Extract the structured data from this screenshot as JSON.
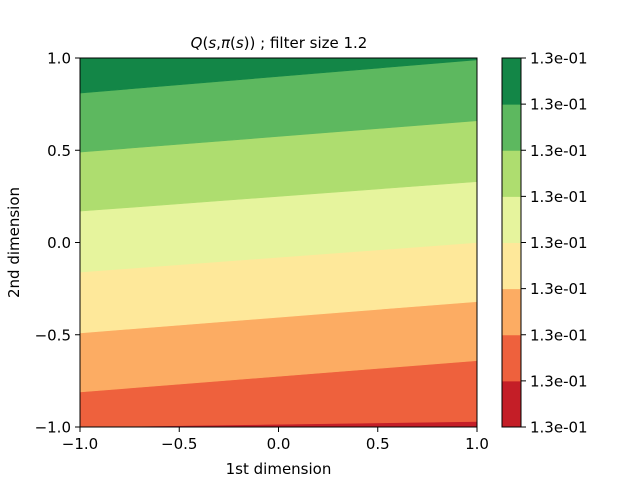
{
  "chart_data": {
    "type": "heatmap",
    "title": "Q(s,π(s)) ; filter size 1.2",
    "title_parts": {
      "q": "Q",
      "open": "(",
      "s1": "s",
      "comma": ",",
      "pi": "π",
      "open2": "(",
      "s2": "s",
      "close": "))",
      "rest": " ; filter size 1.2"
    },
    "xlabel": "1st dimension",
    "ylabel": "2nd dimension",
    "xlim": [
      -1.0,
      1.0
    ],
    "ylim": [
      -1.0,
      1.0
    ],
    "x_ticks": [
      -1.0,
      -0.5,
      0.0,
      0.5,
      1.0
    ],
    "x_tick_labels": [
      "−1.0",
      "−0.5",
      "0.0",
      "0.5",
      "1.0"
    ],
    "y_ticks": [
      -1.0,
      -0.5,
      0.0,
      0.5,
      1.0
    ],
    "y_tick_labels": [
      "−1.0",
      "−0.5",
      "0.0",
      "0.5",
      "1.0"
    ],
    "grid": false,
    "colormap": "RdYlGn",
    "contour_bands": [
      {
        "color": "#c41e27",
        "left_y": [
          -1.0,
          -1.0
        ],
        "right_y": [
          -1.0,
          -0.97
        ]
      },
      {
        "color": "#ee613d",
        "left_y": [
          -1.0,
          -0.81
        ],
        "right_y": [
          -0.97,
          -0.64
        ]
      },
      {
        "color": "#fcac63",
        "left_y": [
          -0.81,
          -0.49
        ],
        "right_y": [
          -0.64,
          -0.32
        ]
      },
      {
        "color": "#fee89a",
        "left_y": [
          -0.49,
          -0.16
        ],
        "right_y": [
          -0.32,
          0.0
        ]
      },
      {
        "color": "#e6f49d",
        "left_y": [
          -0.16,
          0.17
        ],
        "right_y": [
          0.0,
          0.33
        ]
      },
      {
        "color": "#aedd6f",
        "left_y": [
          0.17,
          0.49
        ],
        "right_y": [
          0.33,
          0.66
        ]
      },
      {
        "color": "#5db85f",
        "left_y": [
          0.49,
          0.81
        ],
        "right_y": [
          0.66,
          0.99
        ]
      },
      {
        "color": "#138647",
        "left_y": [
          0.81,
          1.0
        ],
        "right_y": [
          0.99,
          1.0
        ]
      }
    ],
    "colorbar": {
      "colors": [
        "#c41e27",
        "#ee613d",
        "#fcac63",
        "#fee89a",
        "#e6f49d",
        "#aedd6f",
        "#5db85f",
        "#138647"
      ],
      "tick_labels": [
        "1.3e-01",
        "1.3e-01",
        "1.3e-01",
        "1.3e-01",
        "1.3e-01",
        "1.3e-01",
        "1.3e-01",
        "1.3e-01",
        "1.3e-01"
      ]
    }
  }
}
